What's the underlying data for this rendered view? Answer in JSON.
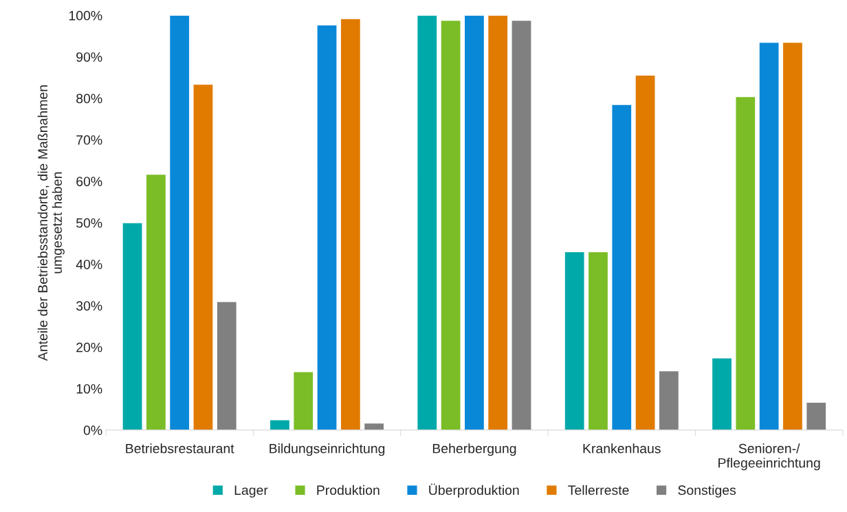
{
  "chart_data": {
    "type": "bar",
    "ylabel": "Anteile der Betriebsstandorte, die Maßnahmen\numgesetzt haben",
    "categories": [
      "Betriebsrestaurant",
      "Bildungseinrichtung",
      "Beherbergung",
      "Krankenhaus",
      "Senioren-/\nPflegeeinrichtung"
    ],
    "series": [
      {
        "name": "Lager",
        "color": "#00a9a9",
        "values": [
          50.0,
          2.5,
          100,
          43,
          17.4
        ]
      },
      {
        "name": "Produktion",
        "color": "#7bbd27",
        "values": [
          61.7,
          14.1,
          98.8,
          43,
          80.4
        ]
      },
      {
        "name": "Überproduktion",
        "color": "#0a88d8",
        "values": [
          100,
          97.7,
          100,
          78.5,
          93.5
        ]
      },
      {
        "name": "Tellerreste",
        "color": "#e07b00",
        "values": [
          83.4,
          99.2,
          100,
          85.6,
          93.5
        ]
      },
      {
        "name": "Sonstiges",
        "color": "#808080",
        "values": [
          31.0,
          1.7,
          98.8,
          14.3,
          6.7
        ]
      }
    ],
    "ylim": [
      0,
      100
    ],
    "yticks": [
      {
        "value": 0,
        "label": "0%"
      },
      {
        "value": 10,
        "label": "10%"
      },
      {
        "value": 20,
        "label": "20%"
      },
      {
        "value": 30,
        "label": "30%"
      },
      {
        "value": 40,
        "label": "40%"
      },
      {
        "value": 50,
        "label": "50%"
      },
      {
        "value": 60,
        "label": "60%"
      },
      {
        "value": 70,
        "label": "70%"
      },
      {
        "value": 80,
        "label": "80%"
      },
      {
        "value": 90,
        "label": "90%"
      },
      {
        "value": 100,
        "label": "100%"
      }
    ],
    "grid": false,
    "legend": "bottom"
  }
}
